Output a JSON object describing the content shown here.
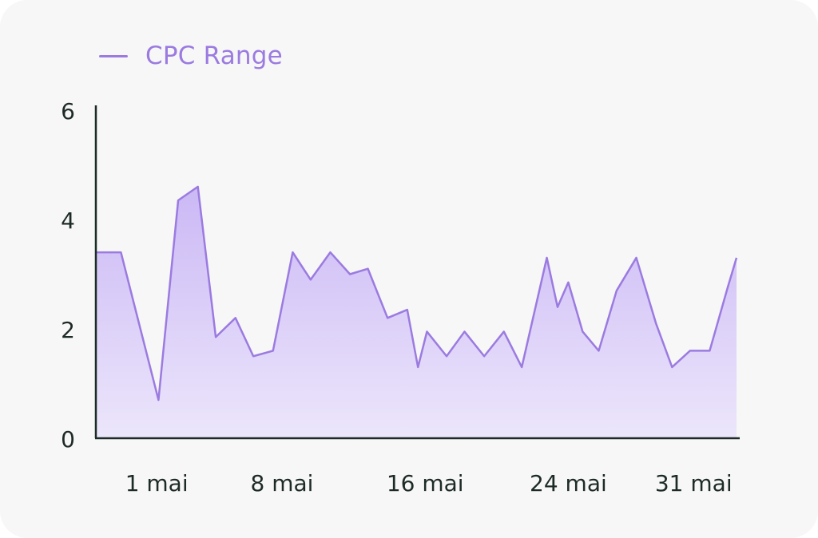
{
  "colors": {
    "background": "#f7f7f7",
    "series": "#9b7be0",
    "fill_top": "#cbb8f5",
    "fill_bottom": "#ece6fb",
    "axis": "#1d2b26",
    "text": "#1d2b26"
  },
  "legend": {
    "label": "CPC Range"
  },
  "chart_data": {
    "type": "area",
    "title": "",
    "xlabel": "",
    "ylabel": "",
    "ylim": [
      0,
      6
    ],
    "yticks": [
      "0",
      "2",
      "4",
      "6"
    ],
    "xticks": [
      "1 mai",
      "8 mai",
      "16 mai",
      "24 mai",
      "31 mai"
    ],
    "grid": false,
    "legend_position": "top-left",
    "series": [
      {
        "name": "CPC Range",
        "x": [
          -2.4,
          -1.0,
          1.1,
          2.2,
          3.3,
          4.3,
          5.4,
          6.4,
          7.5,
          8.6,
          9.6,
          10.7,
          11.8,
          12.8,
          13.9,
          15.0,
          15.6,
          16.1,
          17.2,
          18.2,
          19.3,
          20.4,
          21.4,
          22.1,
          22.8,
          23.4,
          24.0,
          24.8,
          25.7,
          26.7,
          27.8,
          28.9,
          29.8,
          30.8,
          31.9,
          32.9,
          33.4
        ],
        "values": [
          3.4,
          3.4,
          0.7,
          4.35,
          4.6,
          1.85,
          2.2,
          1.5,
          1.6,
          3.4,
          2.9,
          3.4,
          3.0,
          3.1,
          2.2,
          2.35,
          1.3,
          1.95,
          1.5,
          1.95,
          1.5,
          1.95,
          1.3,
          2.3,
          3.3,
          2.4,
          2.85,
          1.95,
          1.6,
          2.7,
          3.3,
          2.1,
          1.3,
          1.6,
          1.6,
          2.75,
          3.3
        ]
      }
    ],
    "xtick_positions": [
      1,
      8,
      16,
      24,
      31
    ]
  }
}
